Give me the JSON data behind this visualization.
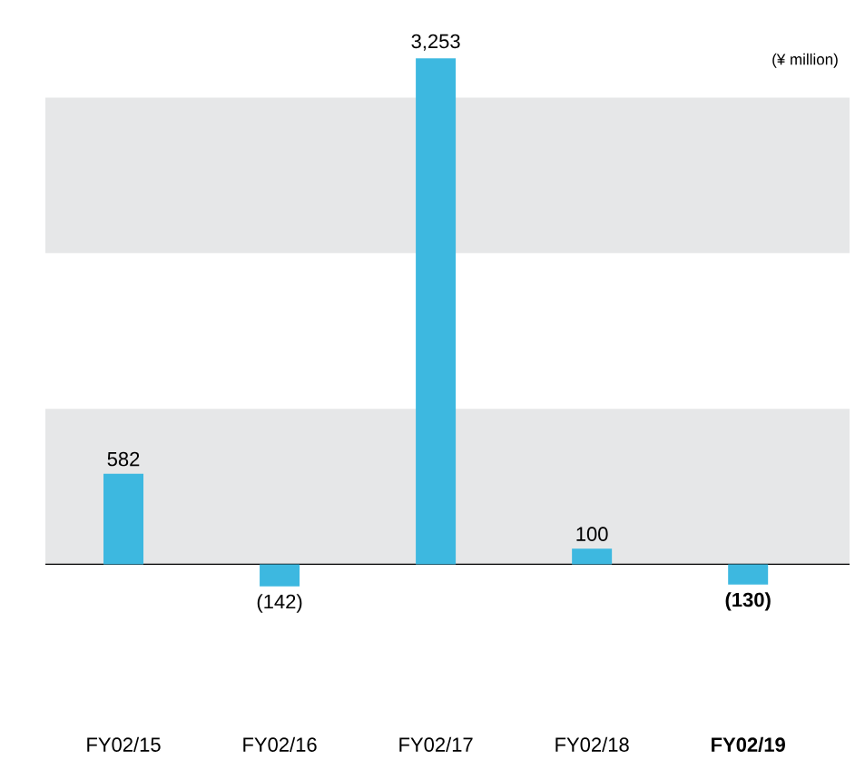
{
  "chart_data": {
    "type": "bar",
    "categories": [
      "FY02/15",
      "FY02/16",
      "FY02/17",
      "FY02/18",
      "**FY02/19**"
    ],
    "values": [
      582,
      -142,
      3253,
      100,
      -130
    ],
    "value_labels": [
      "582",
      "(142)",
      "3,253",
      "100",
      "**(130)**"
    ],
    "color": "#3db8e0",
    "bands": [
      {
        "axis": "y",
        "from": 0,
        "to": 1000,
        "color": "#e6e7e8"
      },
      {
        "axis": "y",
        "from": 2000,
        "to": 3000,
        "color": "#e6e7e8"
      }
    ],
    "annotations": [
      "(¥ million)"
    ]
  }
}
